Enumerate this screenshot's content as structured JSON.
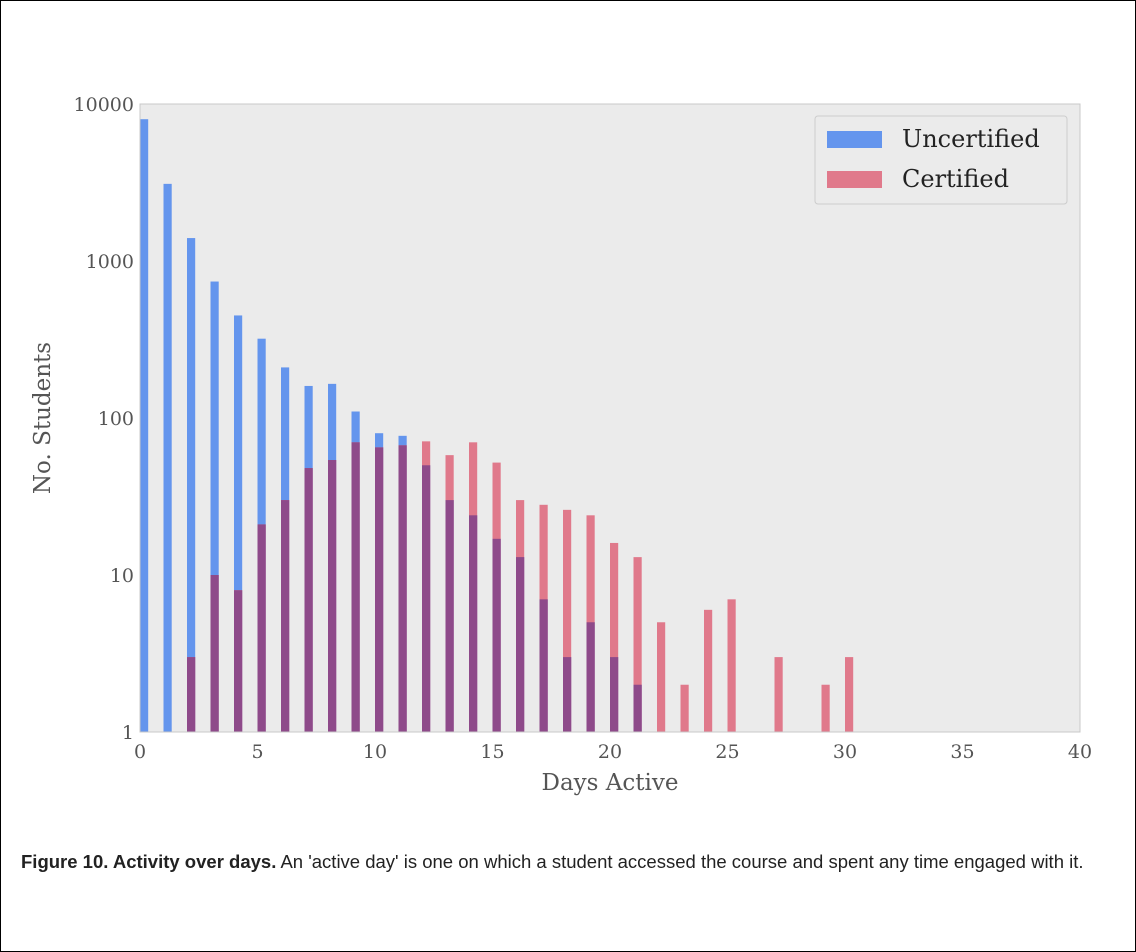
{
  "chart_data": {
    "type": "bar",
    "xlabel": "Days Active",
    "ylabel": "No. Students",
    "xlim": [
      0,
      40
    ],
    "ylim": [
      1,
      10000
    ],
    "y_scale": "log",
    "x_ticks": [
      "0",
      "5",
      "10",
      "15",
      "20",
      "25",
      "30",
      "35",
      "40"
    ],
    "y_ticks": [
      "1",
      "10",
      "100",
      "1000",
      "10000"
    ],
    "legend_position": "top-right",
    "overlap_color": "#8e4a8a",
    "series": [
      {
        "name": "Uncertified",
        "color": "#6495ed",
        "x": [
          0,
          1,
          2,
          3,
          4,
          5,
          6,
          7,
          8,
          9,
          10,
          11,
          12,
          13,
          14,
          15,
          16,
          17,
          18,
          19,
          20,
          21
        ],
        "values": [
          8000,
          3100,
          1400,
          740,
          450,
          320,
          210,
          160,
          165,
          110,
          80,
          77,
          50,
          30,
          24,
          17,
          13,
          7,
          3,
          5,
          3,
          2
        ]
      },
      {
        "name": "Certified",
        "color": "#e0798b",
        "x": [
          2,
          3,
          4,
          5,
          6,
          7,
          8,
          9,
          10,
          11,
          12,
          13,
          14,
          15,
          16,
          17,
          18,
          19,
          20,
          21,
          22,
          23,
          24,
          25,
          27,
          29,
          30
        ],
        "values": [
          3,
          10,
          8,
          21,
          30,
          48,
          54,
          70,
          65,
          67,
          71,
          58,
          70,
          52,
          30,
          28,
          26,
          24,
          16,
          13,
          5,
          2,
          6,
          7,
          3,
          2,
          3
        ]
      }
    ]
  },
  "caption": {
    "label": "Figure 10.",
    "title": " Activity over days.",
    "text": " An 'active day' is one on which a student accessed the course and spent any time engaged with it."
  }
}
